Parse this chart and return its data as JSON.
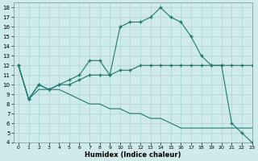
{
  "xlabel": "Humidex (Indice chaleur)",
  "xlim": [
    -0.5,
    23
  ],
  "ylim": [
    4,
    18.5
  ],
  "xticks": [
    0,
    1,
    2,
    3,
    4,
    5,
    6,
    7,
    8,
    9,
    10,
    11,
    12,
    13,
    14,
    15,
    16,
    17,
    18,
    19,
    20,
    21,
    22,
    23
  ],
  "yticks": [
    4,
    5,
    6,
    7,
    8,
    9,
    10,
    11,
    12,
    13,
    14,
    15,
    16,
    17,
    18
  ],
  "bg_color": "#ceeaea",
  "grid_color": "#aad4d4",
  "line_color": "#1a7a6e",
  "line1_x": [
    0,
    1,
    2,
    3,
    4,
    5,
    6,
    7,
    8,
    9,
    10,
    11,
    12,
    13,
    14,
    15,
    16,
    17,
    18,
    19,
    20,
    21,
    22,
    23
  ],
  "line1_y": [
    12,
    8.5,
    10,
    9.5,
    10,
    10.5,
    11,
    12.5,
    12.5,
    11,
    16,
    16.5,
    16.5,
    17,
    18,
    17,
    16.5,
    15,
    13,
    12,
    12,
    6,
    5,
    4
  ],
  "line2_x": [
    0,
    1,
    2,
    3,
    4,
    5,
    6,
    7,
    8,
    9,
    10,
    11,
    12,
    13,
    14,
    15,
    16,
    17,
    18,
    19,
    20,
    21,
    22,
    23
  ],
  "line2_y": [
    12,
    8.5,
    10,
    9.5,
    10,
    10,
    10.5,
    11,
    11,
    11,
    11.5,
    11.5,
    12,
    12,
    12,
    12,
    12,
    12,
    12,
    12,
    12,
    12,
    12,
    12
  ],
  "line3_x": [
    0,
    1,
    2,
    3,
    4,
    5,
    6,
    7,
    8,
    9,
    10,
    11,
    12,
    13,
    14,
    15,
    16,
    17,
    18,
    19,
    20,
    21,
    22,
    23
  ],
  "line3_y": [
    12,
    8.5,
    9.5,
    9.5,
    9.5,
    9,
    8.5,
    8,
    8,
    7.5,
    7.5,
    7,
    7,
    6.5,
    6.5,
    6,
    5.5,
    5.5,
    5.5,
    5.5,
    5.5,
    5.5,
    5.5,
    5.5
  ]
}
